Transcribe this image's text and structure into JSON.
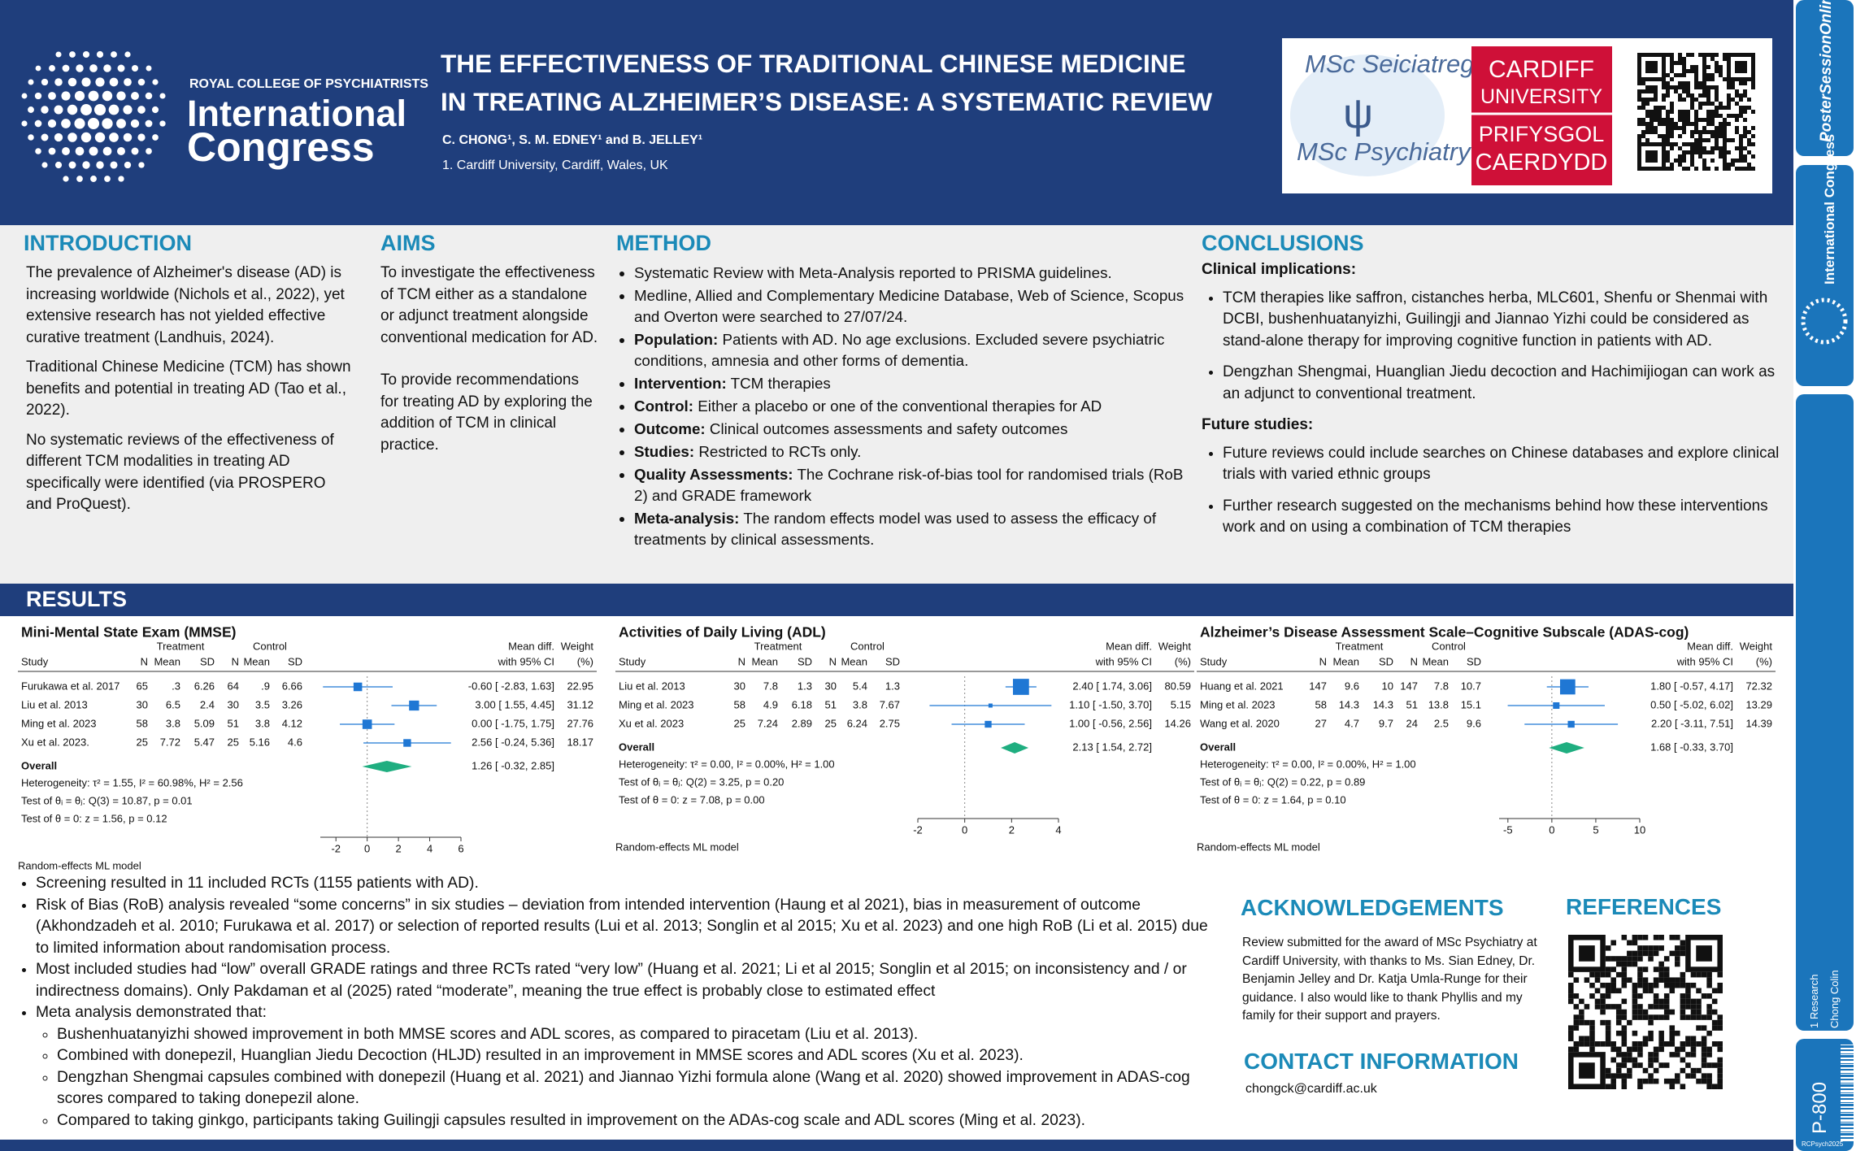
{
  "header": {
    "org": "ROYAL COLLEGE OF PSYCHIATRISTS",
    "event_line1": "International",
    "event_line2": "Congress",
    "title_line1": "THE EFFECTIVENESS OF TRADITIONAL CHINESE MEDICINE",
    "title_line2": "IN TREATING ALZHEIMER’S DISEASE: A SYSTEMATIC REVIEW",
    "authors": "C. CHONG¹, S. M. EDNEY¹ and B. JELLEY¹",
    "affiliation": "1.  Cardiff University, Cardiff, Wales, UK",
    "logos": {
      "msc_welsh": "MSc Seiciatreg",
      "msc_english": "MSc Psychiatry",
      "uni_en_1": "CARDIFF",
      "uni_en_2": "UNIVERSITY",
      "uni_cy_1": "PRIFYSGOL",
      "uni_cy_2": "CAERDYDD"
    }
  },
  "introduction": {
    "heading": "INTRODUCTION",
    "paragraphs": [
      "The prevalence of Alzheimer's disease (AD) is increasing worldwide (Nichols et al., 2022), yet extensive research has not yielded effective curative treatment (Landhuis, 2024).",
      "Traditional Chinese Medicine (TCM) has shown benefits and potential in treating AD (Tao et al., 2022).",
      "No systematic reviews of the effectiveness of different TCM modalities in treating AD specifically were identified (via PROSPERO and ProQuest)."
    ]
  },
  "aims": {
    "heading": "AIMS",
    "paragraphs": [
      "To investigate the effectiveness of TCM either as a standalone or adjunct treatment alongside conventional medication for AD.",
      "To provide recommendations for treating AD by exploring the addition of TCM in clinical practice."
    ]
  },
  "method": {
    "heading": "METHOD",
    "items": [
      {
        "text": "Systematic Review with Meta-Analysis reported to PRISMA guidelines."
      },
      {
        "text": "Medline, Allied and Complementary Medicine Database, Web of Science, Scopus and Overton were searched to 27/07/24."
      },
      {
        "label": "Population:",
        "text": "Patients with AD. No age exclusions. Excluded severe psychiatric conditions, amnesia and other forms of dementia."
      },
      {
        "label": "Intervention:",
        "text": "TCM therapies"
      },
      {
        "label": "Control:",
        "text": "Either a placebo or one of the conventional therapies for AD"
      },
      {
        "label": "Outcome:",
        "text": "Clinical outcomes assessments and safety outcomes"
      },
      {
        "label": "Studies:",
        "text": "Restricted to RCTs only."
      },
      {
        "label": "Quality Assessments:",
        "text": "The Cochrane risk-of-bias tool for randomised trials (RoB 2) and GRADE framework"
      },
      {
        "label": "Meta-analysis:",
        "text": "The random effects model was used to assess the efficacy of treatments by clinical assessments."
      }
    ]
  },
  "conclusions": {
    "heading": "CONCLUSIONS",
    "clinical_heading": "Clinical implications:",
    "clinical": [
      "TCM therapies like saffron, cistanches herba, MLC601, Shenfu or Shenmai with DCBI, bushenhuatanyizhi, Guilingji  and Jiannao Yizhi could be considered as stand-alone therapy for improving cognitive function in patients with AD.",
      "Dengzhan Shengmai, Huanglian Jiedu decoction and Hachimijiogan can work as an adjunct to conventional treatment."
    ],
    "future_heading": "Future studies:",
    "future": [
      "Future reviews could include searches on Chinese databases and explore clinical trials with varied ethnic groups",
      "Further research suggested on the mechanisms behind how these interventions work and on using a combination of TCM therapies"
    ]
  },
  "results": {
    "heading": "RESULTS",
    "plots": [
      {
        "title": "Mini-Mental State Exam (MMSE)",
        "group_labels": [
          "Treatment",
          "Control"
        ],
        "columns": [
          "Study",
          "N",
          "Mean",
          "SD",
          "N",
          "Mean",
          "SD"
        ],
        "effect_header": [
          "Mean diff.",
          "with 95% CI"
        ],
        "weight_header": [
          "Weight",
          "(%)"
        ],
        "rows": [
          {
            "cells": [
              "Furukawa et al. 2017",
              "65",
              ".3",
              "6.26",
              "64",
              ".9",
              "6.66"
            ],
            "md": -0.6,
            "ci": [
              -2.83,
              1.63
            ],
            "ci_label": "-0.60 [ -2.83, 1.63]",
            "weight": 22.95
          },
          {
            "cells": [
              "Liu et al. 2013",
              "30",
              "6.5",
              "2.4",
              "30",
              "3.5",
              "3.26"
            ],
            "md": 3.0,
            "ci": [
              1.55,
              4.45
            ],
            "ci_label": "3.00 [ 1.55, 4.45]",
            "weight": 31.12
          },
          {
            "cells": [
              "Ming et al. 2023",
              "58",
              "3.8",
              "5.09",
              "51",
              "3.8",
              "4.12"
            ],
            "md": 0.0,
            "ci": [
              -1.75,
              1.75
            ],
            "ci_label": "0.00 [ -1.75, 1.75]",
            "weight": 27.76
          },
          {
            "cells": [
              "Xu et al. 2023.",
              "25",
              "7.72",
              "5.47",
              "25",
              "5.16",
              "4.6"
            ],
            "md": 2.56,
            "ci": [
              -0.24,
              5.36
            ],
            "ci_label": "2.56 [ -0.24, 5.36]",
            "weight": 18.17
          }
        ],
        "overall": {
          "label": "Overall",
          "md": 1.26,
          "ci": [
            -0.32,
            2.85
          ],
          "ci_label": "1.26 [ -0.32, 2.85]"
        },
        "stats": [
          "Heterogeneity: τ² = 1.55, I² = 60.98%, H² = 2.56",
          "Test of θᵢ = θⱼ: Q(3) = 10.87, p = 0.01",
          "Test of θ = 0: z = 1.56, p = 0.12"
        ],
        "xlim": [
          -3,
          6
        ],
        "xticks": [
          -2,
          0,
          2,
          4,
          6
        ],
        "model": "Random-effects ML model"
      },
      {
        "title": "Activities of Daily Living (ADL)",
        "group_labels": [
          "Treatment",
          "Control"
        ],
        "columns": [
          "Study",
          "N",
          "Mean",
          "SD",
          "N",
          "Mean",
          "SD"
        ],
        "effect_header": [
          "Mean diff.",
          "with 95% CI"
        ],
        "weight_header": [
          "Weight",
          "(%)"
        ],
        "rows": [
          {
            "cells": [
              "Liu et al. 2013",
              "30",
              "7.8",
              "1.3",
              "30",
              "5.4",
              "1.3"
            ],
            "md": 2.4,
            "ci": [
              1.74,
              3.06
            ],
            "ci_label": "2.40 [ 1.74, 3.06]",
            "weight": 80.59
          },
          {
            "cells": [
              "Ming et al. 2023",
              "58",
              "4.9",
              "6.18",
              "51",
              "3.8",
              "7.67"
            ],
            "md": 1.1,
            "ci": [
              -1.5,
              3.7
            ],
            "ci_label": "1.10 [ -1.50, 3.70]",
            "weight": 5.15
          },
          {
            "cells": [
              "Xu et al. 2023",
              "25",
              "7.24",
              "2.89",
              "25",
              "6.24",
              "2.75"
            ],
            "md": 1.0,
            "ci": [
              -0.56,
              2.56
            ],
            "ci_label": "1.00 [ -0.56, 2.56]",
            "weight": 14.26
          }
        ],
        "overall": {
          "label": "Overall",
          "md": 2.13,
          "ci": [
            1.54,
            2.72
          ],
          "ci_label": "2.13 [ 1.54, 2.72]"
        },
        "stats": [
          "Heterogeneity: τ² = 0.00, I² = 0.00%, H² = 1.00",
          "Test of θᵢ = θⱼ: Q(2) = 3.25, p = 0.20",
          "Test of θ = 0: z = 7.08, p = 0.00"
        ],
        "xlim": [
          -2,
          4
        ],
        "xticks": [
          -2,
          0,
          2,
          4
        ],
        "model": "Random-effects ML model"
      },
      {
        "title": "Alzheimer’s Disease Assessment Scale–Cognitive Subscale (ADAS-cog)",
        "group_labels": [
          "Treatment",
          "Control"
        ],
        "columns": [
          "Study",
          "N",
          "Mean",
          "SD",
          "N",
          "Mean",
          "SD"
        ],
        "effect_header": [
          "Mean diff.",
          "with 95% CI"
        ],
        "weight_header": [
          "Weight",
          "(%)"
        ],
        "rows": [
          {
            "cells": [
              "Huang et al. 2021",
              "147",
              "9.6",
              "10",
              "147",
              "7.8",
              "10.7"
            ],
            "md": 1.8,
            "ci": [
              -0.57,
              4.17
            ],
            "ci_label": "1.80 [ -0.57, 4.17]",
            "weight": 72.32
          },
          {
            "cells": [
              "Ming et al. 2023",
              "58",
              "14.3",
              "14.3",
              "51",
              "13.8",
              "15.1"
            ],
            "md": 0.5,
            "ci": [
              -5.02,
              6.02
            ],
            "ci_label": "0.50 [ -5.02, 6.02]",
            "weight": 13.29
          },
          {
            "cells": [
              "Wang et al. 2020",
              "27",
              "4.7",
              "9.7",
              "24",
              "2.5",
              "9.6"
            ],
            "md": 2.2,
            "ci": [
              -3.11,
              7.51
            ],
            "ci_label": "2.20 [ -3.11, 7.51]",
            "weight": 14.39
          }
        ],
        "overall": {
          "label": "Overall",
          "md": 1.68,
          "ci": [
            -0.33,
            3.7
          ],
          "ci_label": "1.68 [ -0.33, 3.70]"
        },
        "stats": [
          "Heterogeneity: τ² = 0.00, I² = 0.00%, H² = 1.00",
          "Test of θᵢ = θⱼ: Q(2) = 0.22, p = 0.89",
          "Test of θ = 0: z = 1.64, p = 0.10"
        ],
        "xlim": [
          -6,
          10
        ],
        "xticks": [
          -5,
          0,
          5,
          10
        ],
        "model": "Random-effects ML model"
      }
    ],
    "bullets": [
      {
        "text": "Screening resulted in 11 included RCTs (1155 patients with AD)."
      },
      {
        "text": "Risk of Bias (RoB) analysis revealed “some concerns” in six studies – deviation from intended intervention (Haung et al 2021), bias in measurement of outcome (Akhondzadeh et al. 2010; Furukawa et al. 2017) or selection of reported results (Lui et al. 2013; Songlin et al 2015; Xu et al. 2023) and one high RoB (Li et al. 2015) due to limited information about randomisation process."
      },
      {
        "text": "Most included studies had “low” overall GRADE ratings and three RCTs rated “very low” (Huang et al. 2021; Li et al 2015; Songlin et al 2015; on inconsistency and / or indirectness domains). Only Pakdaman et al (2025) rated “moderate”, meaning the true effect is probably close to estimated effect"
      },
      {
        "text": "Meta analysis demonstrated that:",
        "sub": [
          "Bushenhuatanyizhi showed improvement in both MMSE scores and ADL scores, as compared to piracetam (Liu et al. 2013).",
          "Combined with donepezil, Huanglian Jiedu Decoction (HLJD) resulted in an improvement in MMSE scores and ADL scores (Xu et al. 2023).",
          "Dengzhan Shengmai capsules combined with donepezil (Huang et al. 2021) and Jiannao Yizhi formula alone (Wang et al. 2020) showed improvement in ADAS-cog scores compared to taking donepezil alone.",
          "Compared to taking ginkgo, participants taking Guilingji capsules resulted in improvement on the ADAs-cog scale and ADL scores (Ming et al. 2023)."
        ]
      }
    ]
  },
  "acknowledgements": {
    "heading": "ACKNOWLEDGEMENTS",
    "text": "Review submitted for the award of MSc Psychiatry at Cardiff University, with thanks to Ms. Sian Edney, Dr. Benjamin Jelley and Dr. Katja Umla-Runge for their guidance. I also would like to thank Phyllis and my family for their support and prayers."
  },
  "contact": {
    "heading": "CONTACT INFORMATION",
    "email": "chongck@cardiff.ac.uk"
  },
  "references": {
    "heading": "REFERENCES"
  },
  "sidebar": {
    "brand": "PosterSessionOnline",
    "congress": "International Congress",
    "category": "1 Research",
    "author": "Chong Colin",
    "code": "P-800",
    "tag": "RCPsych2025"
  }
}
